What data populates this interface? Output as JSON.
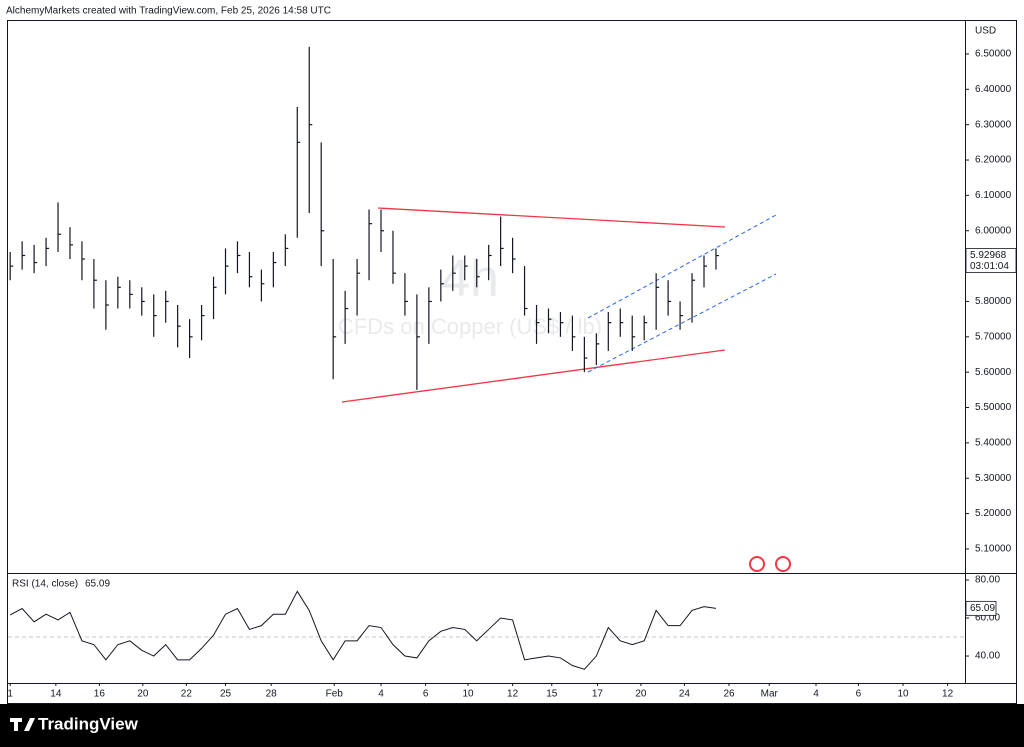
{
  "header": "AlchemyMarkets created with TradingView.com, Feb 25, 2026 14:58 UTC",
  "footer_brand": "TradingView",
  "chart_data": [
    {
      "type": "ohlc",
      "watermark": "4h",
      "symbol_watermark": "CFDs on Copper (US$ / lb)",
      "currency": "USD",
      "countdown": "03:01:04",
      "color": "#131722",
      "x": [
        0,
        0.55,
        1.1,
        1.65,
        2.2,
        2.75,
        3.3,
        3.85,
        4.4,
        4.95,
        5.5,
        6.05,
        6.6,
        7.15,
        7.7,
        8.25,
        8.8,
        9.35,
        9.9,
        10.45,
        11,
        11.55,
        12.1,
        12.65,
        13.2,
        13.75,
        14.3,
        14.85,
        15.4,
        15.95,
        16.5,
        17.05,
        17.6,
        18.15,
        18.7,
        19.25,
        19.8,
        20.35,
        20.9,
        21.45,
        22,
        22.55,
        23.1,
        23.65,
        24.2,
        24.75,
        25.3,
        25.85,
        26.4,
        26.95,
        27.5,
        28.05,
        28.6,
        29.15,
        29.7,
        30.25,
        30.8,
        31.35,
        31.9,
        32.45
      ],
      "high": [
        5.94,
        5.97,
        5.96,
        5.98,
        6.08,
        6.01,
        5.97,
        5.92,
        5.86,
        5.87,
        5.86,
        5.84,
        5.82,
        5.83,
        5.79,
        5.75,
        5.79,
        5.87,
        5.95,
        5.97,
        5.94,
        5.89,
        5.94,
        5.99,
        6.35,
        6.52,
        6.25,
        5.92,
        5.83,
        5.92,
        6.06,
        6.06,
        6.0,
        5.88,
        5.82,
        5.84,
        5.89,
        5.93,
        5.93,
        5.92,
        5.96,
        6.04,
        5.98,
        5.9,
        5.79,
        5.78,
        5.77,
        5.76,
        5.7,
        5.71,
        5.77,
        5.78,
        5.76,
        5.76,
        5.88,
        5.86,
        5.8,
        5.88,
        5.93,
        5.95
      ],
      "low": [
        5.86,
        5.89,
        5.88,
        5.9,
        5.94,
        5.92,
        5.86,
        5.78,
        5.72,
        5.78,
        5.78,
        5.76,
        5.7,
        5.74,
        5.67,
        5.64,
        5.69,
        5.75,
        5.82,
        5.88,
        5.84,
        5.8,
        5.84,
        5.9,
        5.98,
        6.05,
        5.9,
        5.58,
        5.68,
        5.76,
        5.86,
        5.94,
        5.85,
        5.76,
        5.55,
        5.68,
        5.8,
        5.83,
        5.86,
        5.84,
        5.86,
        5.9,
        5.88,
        5.76,
        5.68,
        5.71,
        5.7,
        5.66,
        5.6,
        5.62,
        5.66,
        5.7,
        5.66,
        5.69,
        5.72,
        5.76,
        5.72,
        5.74,
        5.84,
        5.89
      ],
      "close": [
        5.9,
        5.93,
        5.91,
        5.95,
        5.99,
        5.96,
        5.92,
        5.86,
        5.79,
        5.84,
        5.82,
        5.8,
        5.76,
        5.8,
        5.73,
        5.7,
        5.76,
        5.84,
        5.9,
        5.93,
        5.87,
        5.85,
        5.91,
        5.95,
        6.25,
        6.3,
        6.0,
        5.7,
        5.78,
        5.88,
        6.02,
        6.0,
        5.88,
        5.8,
        5.7,
        5.8,
        5.85,
        5.88,
        5.9,
        5.87,
        5.93,
        5.95,
        5.92,
        5.78,
        5.74,
        5.75,
        5.74,
        5.7,
        5.64,
        5.68,
        5.74,
        5.74,
        5.7,
        5.74,
        5.84,
        5.8,
        5.76,
        5.86,
        5.9,
        5.92968
      ],
      "xlim": [
        -0.1,
        43.9
      ],
      "xticks": [
        {
          "value": 0,
          "label": "1"
        },
        {
          "value": 2.1,
          "label": "14"
        },
        {
          "value": 4.1,
          "label": "16"
        },
        {
          "value": 6.1,
          "label": "20"
        },
        {
          "value": 8.1,
          "label": "22"
        },
        {
          "value": 9.9,
          "label": "25"
        },
        {
          "value": 12.0,
          "label": "28"
        },
        {
          "value": 14.9,
          "label": "Feb"
        },
        {
          "value": 17.05,
          "label": "4"
        },
        {
          "value": 19.1,
          "label": "6"
        },
        {
          "value": 21.05,
          "label": "10"
        },
        {
          "value": 23.1,
          "label": "12"
        },
        {
          "value": 24.9,
          "label": "15"
        },
        {
          "value": 27.0,
          "label": "17"
        },
        {
          "value": 29.0,
          "label": "20"
        },
        {
          "value": 31.0,
          "label": "24"
        },
        {
          "value": 33.05,
          "label": "26"
        },
        {
          "value": 34.9,
          "label": "Mar"
        },
        {
          "value": 37.05,
          "label": "4"
        },
        {
          "value": 39.0,
          "label": "6"
        },
        {
          "value": 41.05,
          "label": "10"
        },
        {
          "value": 43.1,
          "label": "12"
        }
      ],
      "ylim": [
        5.032,
        6.596
      ],
      "yticks": [
        {
          "value": 6.5,
          "label": "6.50000"
        },
        {
          "value": 6.4,
          "label": "6.40000"
        },
        {
          "value": 6.3,
          "label": "6.30000"
        },
        {
          "value": 6.2,
          "label": "6.20000"
        },
        {
          "value": 6.1,
          "label": "6.10000"
        },
        {
          "value": 6.0,
          "label": "6.00000"
        },
        {
          "value": 5.9,
          "label": "5.90000"
        },
        {
          "value": 5.8,
          "label": "5.80000"
        },
        {
          "value": 5.7,
          "label": "5.70000"
        },
        {
          "value": 5.6,
          "label": "5.60000"
        },
        {
          "value": 5.5,
          "label": "5.50000"
        },
        {
          "value": 5.4,
          "label": "5.40000"
        },
        {
          "value": 5.3,
          "label": "5.30000"
        },
        {
          "value": 5.2,
          "label": "5.20000"
        },
        {
          "value": 5.1,
          "label": "5.10000"
        }
      ]
    },
    {
      "type": "line",
      "title": "RSI (14, close)",
      "color": "#131722",
      "x": [
        0,
        0.55,
        1.1,
        1.65,
        2.2,
        2.75,
        3.3,
        3.85,
        4.4,
        4.95,
        5.5,
        6.05,
        6.6,
        7.15,
        7.7,
        8.25,
        8.8,
        9.35,
        9.9,
        10.45,
        11,
        11.55,
        12.1,
        12.65,
        13.2,
        13.75,
        14.3,
        14.85,
        15.4,
        15.95,
        16.5,
        17.05,
        17.6,
        18.15,
        18.7,
        19.25,
        19.8,
        20.35,
        20.9,
        21.45,
        22,
        22.55,
        23.1,
        23.65,
        24.2,
        24.75,
        25.3,
        25.85,
        26.4,
        26.95,
        27.5,
        28.05,
        28.6,
        29.15,
        29.7,
        30.25,
        30.8,
        31.35,
        31.9,
        32.45
      ],
      "values": [
        61.6,
        65,
        58,
        62,
        59,
        63,
        48,
        46,
        38,
        46,
        48,
        43,
        40,
        46,
        38,
        38,
        44,
        51,
        62,
        65,
        54,
        56,
        62,
        62,
        74,
        64,
        48,
        38,
        48,
        48,
        56,
        55,
        46,
        40,
        39,
        48,
        53,
        55,
        54,
        48,
        54,
        60,
        59,
        38,
        39,
        40,
        39,
        35,
        33,
        40,
        55,
        48,
        46,
        48,
        64,
        56,
        56,
        64,
        66,
        65.09
      ],
      "levels": [
        50
      ],
      "ylim": [
        25.8,
        83.7
      ],
      "yticks": [
        {
          "value": 80,
          "label": "80.00"
        },
        {
          "value": 60,
          "label": "60.00"
        },
        {
          "value": 40,
          "label": "40.00"
        }
      ]
    }
  ]
}
